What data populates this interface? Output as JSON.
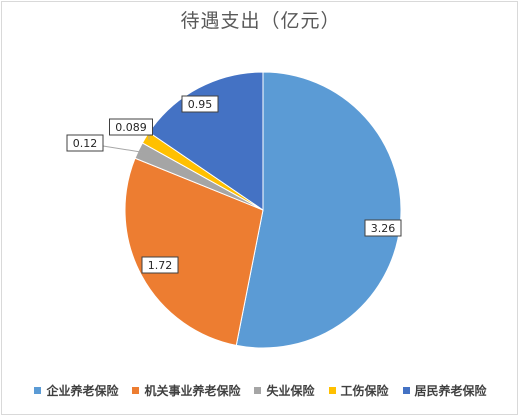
{
  "chart_data": {
    "type": "pie",
    "title": "待遇支出（亿元）",
    "categories": [
      "企业养老保险",
      "机关事业养老保险",
      "失业保险",
      "工伤保险",
      "居民养老保险"
    ],
    "values": [
      3.26,
      1.72,
      0.12,
      0.089,
      0.95
    ],
    "labels": [
      "3.26",
      "1.72",
      "0.12",
      "0.089",
      "0.95"
    ],
    "colors": [
      "#5b9bd5",
      "#ed7d31",
      "#a5a5a5",
      "#ffc000",
      "#4472c4"
    ],
    "legend": "bottom"
  }
}
